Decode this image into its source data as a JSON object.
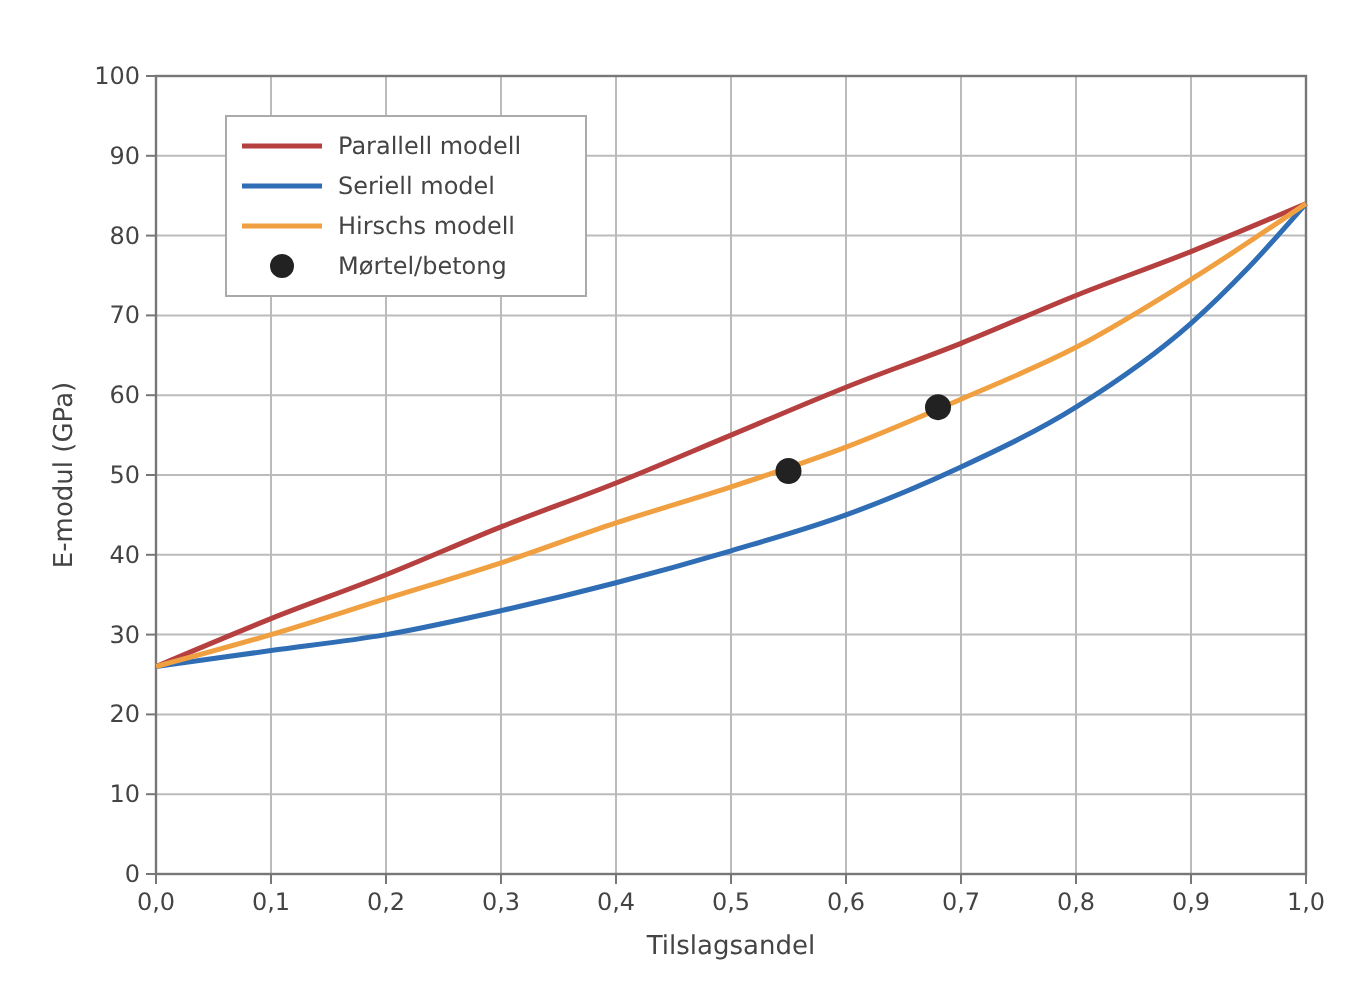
{
  "chart_data": {
    "type": "line",
    "xlabel": "Tilslagsandel",
    "ylabel": "E-modul (GPa)",
    "xlim": [
      0,
      1
    ],
    "ylim": [
      0,
      100
    ],
    "xticks": [
      {
        "value": 0,
        "label": "0,0"
      },
      {
        "value": 0.1,
        "label": "0,1"
      },
      {
        "value": 0.2,
        "label": "0,2"
      },
      {
        "value": 0.3,
        "label": "0,3"
      },
      {
        "value": 0.4,
        "label": "0,4"
      },
      {
        "value": 0.5,
        "label": "0,5"
      },
      {
        "value": 0.6,
        "label": "0,6"
      },
      {
        "value": 0.7,
        "label": "0,7"
      },
      {
        "value": 0.8,
        "label": "0,8"
      },
      {
        "value": 0.9,
        "label": "0,9"
      },
      {
        "value": 1,
        "label": "1,0"
      }
    ],
    "yticks": [
      0,
      10,
      20,
      30,
      40,
      50,
      60,
      70,
      80,
      90,
      100
    ],
    "grid": true,
    "legend": "top left",
    "marker": "none",
    "series": [
      {
        "name": "Parallell modell",
        "color": "#b5403f",
        "x": [
          0,
          0.1,
          0.2,
          0.3,
          0.4,
          0.5,
          0.6,
          0.7,
          0.8,
          0.9,
          1
        ],
        "values": [
          26,
          32,
          37.5,
          43.5,
          49,
          55,
          61,
          66.5,
          72.5,
          78,
          84
        ]
      },
      {
        "name": "Seriell model",
        "color": "#2f6db5",
        "x": [
          0,
          0.1,
          0.2,
          0.3,
          0.4,
          0.5,
          0.6,
          0.7,
          0.8,
          0.9,
          0.95,
          1
        ],
        "values": [
          26,
          28,
          30,
          33,
          36.5,
          40.5,
          45,
          51,
          58.5,
          69,
          76,
          84
        ]
      },
      {
        "name": "Hirschs modell",
        "color": "#f0a040",
        "x": [
          0,
          0.1,
          0.2,
          0.3,
          0.4,
          0.5,
          0.6,
          0.7,
          0.8,
          0.9,
          1
        ],
        "values": [
          26,
          30,
          34.5,
          39,
          44,
          48.5,
          53.5,
          59.5,
          66,
          74.5,
          84
        ]
      },
      {
        "name": "Mørtel/betong",
        "type": "scatter",
        "marker": "circle",
        "color": "#222222",
        "x": [
          0.55,
          0.68
        ],
        "values": [
          50.5,
          58.5
        ]
      }
    ]
  }
}
